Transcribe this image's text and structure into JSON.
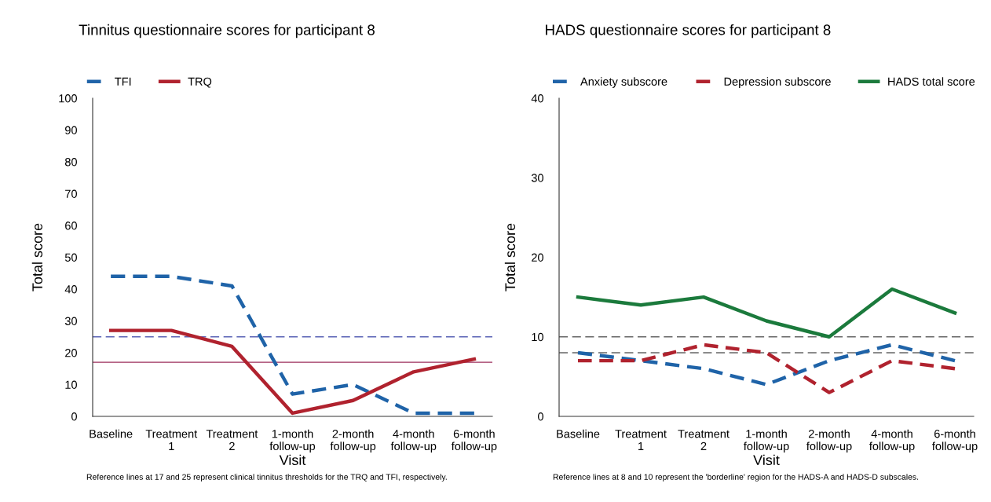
{
  "chart_data": [
    {
      "type": "line",
      "title": "Tinnitus questionnaire scores for participant 8",
      "xlabel": "Visit",
      "ylabel": "Total score",
      "categories": [
        "Baseline",
        "Treatment\n1",
        "Treatment\n2",
        "1-month\nfollow-up",
        "2-month\nfollow-up",
        "4-month\nfollow-up",
        "6-month\nfollow-up"
      ],
      "series": [
        {
          "name": "TFI",
          "color": "#1f63a8",
          "line_style": "dashed",
          "values": [
            44,
            44,
            41,
            7,
            10,
            1,
            1
          ]
        },
        {
          "name": "TRQ",
          "color": "#b0222e",
          "line_style": "solid",
          "values": [
            27,
            27,
            22,
            1,
            5,
            14,
            18
          ]
        }
      ],
      "ylim": [
        0,
        100
      ],
      "yticks": [
        0,
        10,
        20,
        30,
        40,
        50,
        60,
        70,
        80,
        90,
        100
      ],
      "ref_lines": [
        {
          "axis": "y",
          "value": 25,
          "color": "#5a63b5",
          "line_style": "dashed"
        },
        {
          "axis": "y",
          "value": 17,
          "color": "#9c2f5c",
          "line_style": "solid"
        }
      ],
      "grid": false,
      "legend": "top left",
      "annotations": [
        "Reference lines at 17 and 25 represent clinical tinnitus thresholds for the TRQ and TFI, respectively."
      ]
    },
    {
      "type": "line",
      "title": "HADS questionnaire scores for participant 8",
      "xlabel": "Visit",
      "ylabel": "Total score",
      "categories": [
        "Baseline",
        "Treatment\n1",
        "Treatment\n2",
        "1-month\nfollow-up",
        "2-month\nfollow-up",
        "4-month\nfollow-up",
        "6-month\nfollow-up"
      ],
      "series": [
        {
          "name": "Anxiety subscore",
          "color": "#1f63a8",
          "line_style": "dashed",
          "values": [
            8,
            7,
            6,
            4,
            7,
            9,
            7
          ]
        },
        {
          "name": "Depression subscore",
          "color": "#b0222e",
          "line_style": "dashed",
          "values": [
            7,
            7,
            9,
            8,
            3,
            7,
            6
          ]
        },
        {
          "name": "HADS total score",
          "color": "#1b7a3c",
          "line_style": "solid",
          "values": [
            15,
            14,
            15,
            12,
            10,
            16,
            13
          ]
        }
      ],
      "ylim": [
        0,
        40
      ],
      "yticks": [
        0,
        10,
        20,
        30,
        40
      ],
      "ref_lines": [
        {
          "axis": "y",
          "value": 10,
          "color": "#666666",
          "line_style": "dashed"
        },
        {
          "axis": "y",
          "value": 8,
          "color": "#666666",
          "line_style": "dashed"
        }
      ],
      "grid": false,
      "legend": "top left",
      "annotations": [
        "Reference lines at 8 and 10 represent the 'borderline' region for the HADS-A and HADS-D subscales."
      ]
    }
  ]
}
